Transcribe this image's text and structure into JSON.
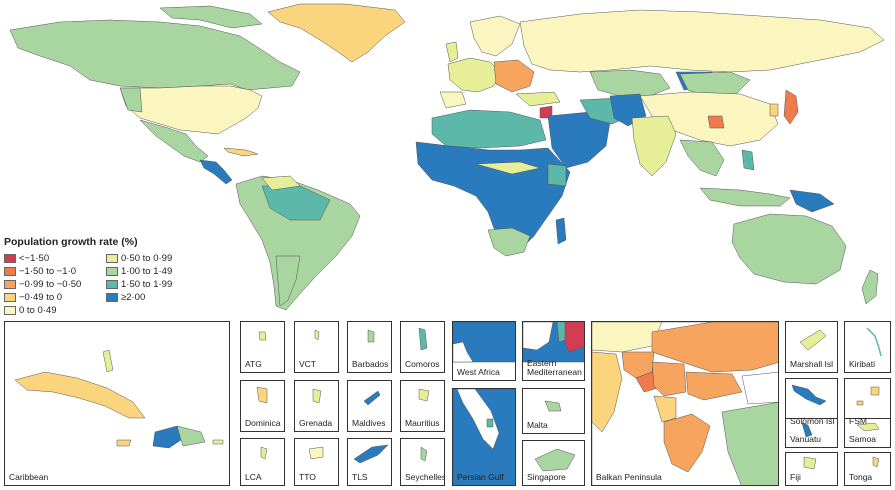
{
  "legend": {
    "title": "Population growth rate (%)",
    "items": [
      {
        "label": "<−1·50",
        "color": "#d43d51"
      },
      {
        "label": "0·50 to 0·99",
        "color": "#e6ee98"
      },
      {
        "label": "−1·50 to −1·0",
        "color": "#f07a4c"
      },
      {
        "label": "1·00 to 1·49",
        "color": "#a8d5a0"
      },
      {
        "label": "−0·99 to −0·50",
        "color": "#f6a45e"
      },
      {
        "label": "1·50 to 1·99",
        "color": "#5cb8a8"
      },
      {
        "label": "−0·49 to 0",
        "color": "#fbd57e"
      },
      {
        "label": "≥2·00",
        "color": "#2a7bbd"
      },
      {
        "label": "0 to 0·49",
        "color": "#fbf5bf"
      }
    ]
  },
  "insets": {
    "caribbean": "Caribbean",
    "atg": "ATG",
    "vct": "VCT",
    "barbados": "Barbados",
    "comoros": "Comoros",
    "dominica": "Dominica",
    "grenada": "Grenada",
    "maldives": "Maldives",
    "mauritius": "Mauritius",
    "lca": "LCA",
    "tto": "TTO",
    "tls": "TLS",
    "seychelles": "Seychelles",
    "west_africa": "West Africa",
    "eastern_med": "Eastern Mediterranean",
    "malta": "Malta",
    "persian_gulf": "Persian Gulf",
    "singapore": "Singapore",
    "balkan": "Balkan Peninsula",
    "marshall": "Marshall Isl",
    "kiribati": "Kiribati",
    "solomon": "Solomon Isl",
    "fsm": "FSM",
    "vanuatu": "Vanuatu",
    "samoa": "Samoa",
    "fiji": "Fiji",
    "tonga": "Tonga"
  },
  "colors": {
    "lt_m150": "#d43d51",
    "m150_m100": "#f07a4c",
    "m099_m050": "#f6a45e",
    "m049_0": "#fbd57e",
    "p0_049": "#fbf5bf",
    "p050_099": "#e6ee98",
    "p100_149": "#a8d5a0",
    "p150_199": "#5cb8a8",
    "ge200": "#2a7bbd"
  }
}
